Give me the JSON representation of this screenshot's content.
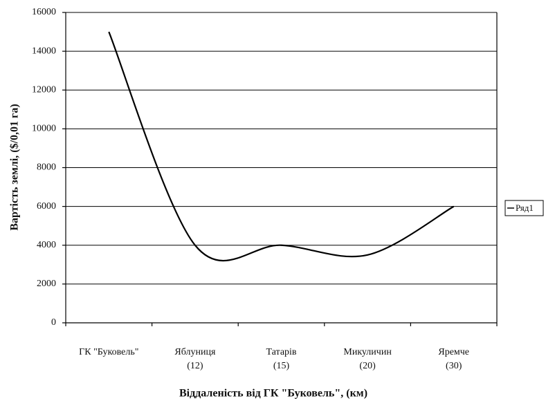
{
  "chart_data": {
    "type": "line",
    "x_label": "Віддаленість від ГК \"Буковель\", (км)",
    "y_label": "Вартість землі, ($/0,01 га)",
    "categories": [
      [
        "ГК \"Буковель\""
      ],
      [
        "Яблуниця",
        "(12)"
      ],
      [
        "Татарів",
        "(15)"
      ],
      [
        "Микуличин",
        "(20)"
      ],
      [
        "Яремче",
        "(30)"
      ]
    ],
    "series": [
      {
        "name": "Ряд1",
        "color": "#000000",
        "values": [
          15000,
          4000,
          4000,
          3500,
          6000
        ]
      }
    ],
    "ylim": [
      0,
      16000
    ],
    "yticks": [
      0,
      2000,
      4000,
      6000,
      8000,
      10000,
      12000,
      14000,
      16000
    ],
    "grid": true,
    "smooth": true,
    "legend": "right"
  }
}
